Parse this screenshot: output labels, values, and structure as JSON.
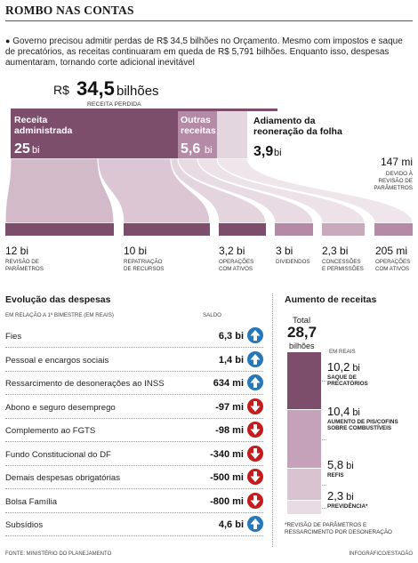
{
  "header": {
    "title": "ROMBO NAS CONTAS",
    "intro_bullet": "●",
    "intro": "Governo precisou admitir perdas de R$ 34,5 bilhões no Orçamento. Mesmo com impostos e saque de precatórios, as receitas continuaram em queda de R$ 5,791 bilhões. Enquanto isso, despesas aumentaram, tornando corte adicional inevitável"
  },
  "total": {
    "prefix": "R$",
    "value": "34,5",
    "unit": "bilhões",
    "label": "RECEITA PERDIDA"
  },
  "sources": [
    {
      "name": "Receita administrada",
      "value": "25",
      "unit": "bi",
      "amount": 25
    },
    {
      "name": "Outras receitas",
      "value": "5,6",
      "unit": "bi",
      "amount": 5.6
    },
    {
      "name": "Adiamento da reoneração da folha",
      "value": "3,9",
      "unit": "bi",
      "amount": 3.9
    }
  ],
  "side_note": {
    "value": "147 mi",
    "label": "DEVIDO À REVISÃO DE PARÂMETROS"
  },
  "destinations": [
    {
      "value": "12 bi",
      "label": "REVISÃO DE PARÂMETROS",
      "amount": 12
    },
    {
      "value": "10 bi",
      "label": "REPATRIAÇÃO DE RECURSOS",
      "amount": 10
    },
    {
      "value": "3,2 bi",
      "label": "OPERAÇÕES COM ATIVOS",
      "amount": 3.2
    },
    {
      "value": "3 bi",
      "label": "DIVIDENDOS",
      "amount": 3
    },
    {
      "value": "2,3 bi",
      "label": "CONCESSÕES E PERMISSÕES",
      "amount": 2.3
    },
    {
      "value": "205 mi",
      "label": "OPERAÇÕES COM ATIVOS",
      "amount": 0.205
    }
  ],
  "expenses": {
    "title": "Evolução das despesas",
    "subtitle": "EM RELAÇÃO A 1º BIMESTRE (EM REAIS)",
    "column_label": "SALDO",
    "rows": [
      {
        "label": "Fies",
        "value": "6,3 bi",
        "direction": "up"
      },
      {
        "label": "Pessoal e encargos sociais",
        "value": "1,4 bi",
        "direction": "up"
      },
      {
        "label": "Ressarcimento de desonerações ao INSS",
        "value": "634 mi",
        "direction": "up"
      },
      {
        "label": "Abono e seguro desemprego",
        "value": "-97 mi",
        "direction": "down"
      },
      {
        "label": "Complemento ao FGTS",
        "value": "-98 mi",
        "direction": "down"
      },
      {
        "label": "Fundo Constitucional do DF",
        "value": "-340 mi",
        "direction": "down"
      },
      {
        "label": "Demais despesas obrigatórias",
        "value": "-500 mi",
        "direction": "down"
      },
      {
        "label": "Bolsa Família",
        "value": "-800 mi",
        "direction": "down"
      },
      {
        "label": "Subsídios",
        "value": "4,6 bi",
        "direction": "up"
      }
    ]
  },
  "revenue": {
    "title": "Aumento de receitas",
    "total_label": "Total",
    "total_value": "28,7",
    "total_unit": "bilhões",
    "unit_label": "EM REAIS",
    "items": [
      {
        "value": "10,2",
        "unit": "bi",
        "label": "SAQUE DE PRECATÓRIOS",
        "amount": 10.2,
        "color": "#7d4d6c"
      },
      {
        "value": "10,4",
        "unit": "bi",
        "label": "AUMENTO DE PIS/COFINS SOBRE COMBUSTÍVEIS",
        "amount": 10.4,
        "color": "#c5a2b9"
      },
      {
        "value": "5,8",
        "unit": "bi",
        "label": "REFIS",
        "amount": 5.8,
        "color": "#d9c3d1"
      },
      {
        "value": "2,3",
        "unit": "bi",
        "label": "PREVIDÊNCIA*",
        "amount": 2.3,
        "color": "#e8dbe3"
      }
    ],
    "footnote": "*REVISÃO DE PARÂMETROS E RESSARCIMENTO POR DESONERAÇÃO"
  },
  "footer": {
    "source": "FONTE: MINISTÉRIO DO PLANEJAMENTO",
    "credit": "INFOGRÁFICO/ESTADÃO"
  },
  "chart_data": {
    "type": "bar",
    "title": "Evolução das despesas",
    "subtitle": "EM RELAÇÃO A 1º BIMESTRE (EM REAIS)",
    "categories": [
      "Fies",
      "Pessoal e encargos sociais",
      "Ressarcimento de desonerações ao INSS",
      "Abono e seguro desemprego",
      "Complemento ao FGTS",
      "Fundo Constitucional do DF",
      "Demais despesas obrigatórias",
      "Bolsa Família",
      "Subsídios"
    ],
    "values": [
      6300,
      1400,
      634,
      -97,
      -98,
      -340,
      -500,
      -800,
      4600
    ],
    "xlabel": "",
    "ylabel": "",
    "grid": false
  },
  "colors": {
    "dark": "#7d4d6c",
    "medium": "#b58aa6",
    "light": "#ddc9d5",
    "up": "#2778b8",
    "down": "#c41c1c"
  }
}
